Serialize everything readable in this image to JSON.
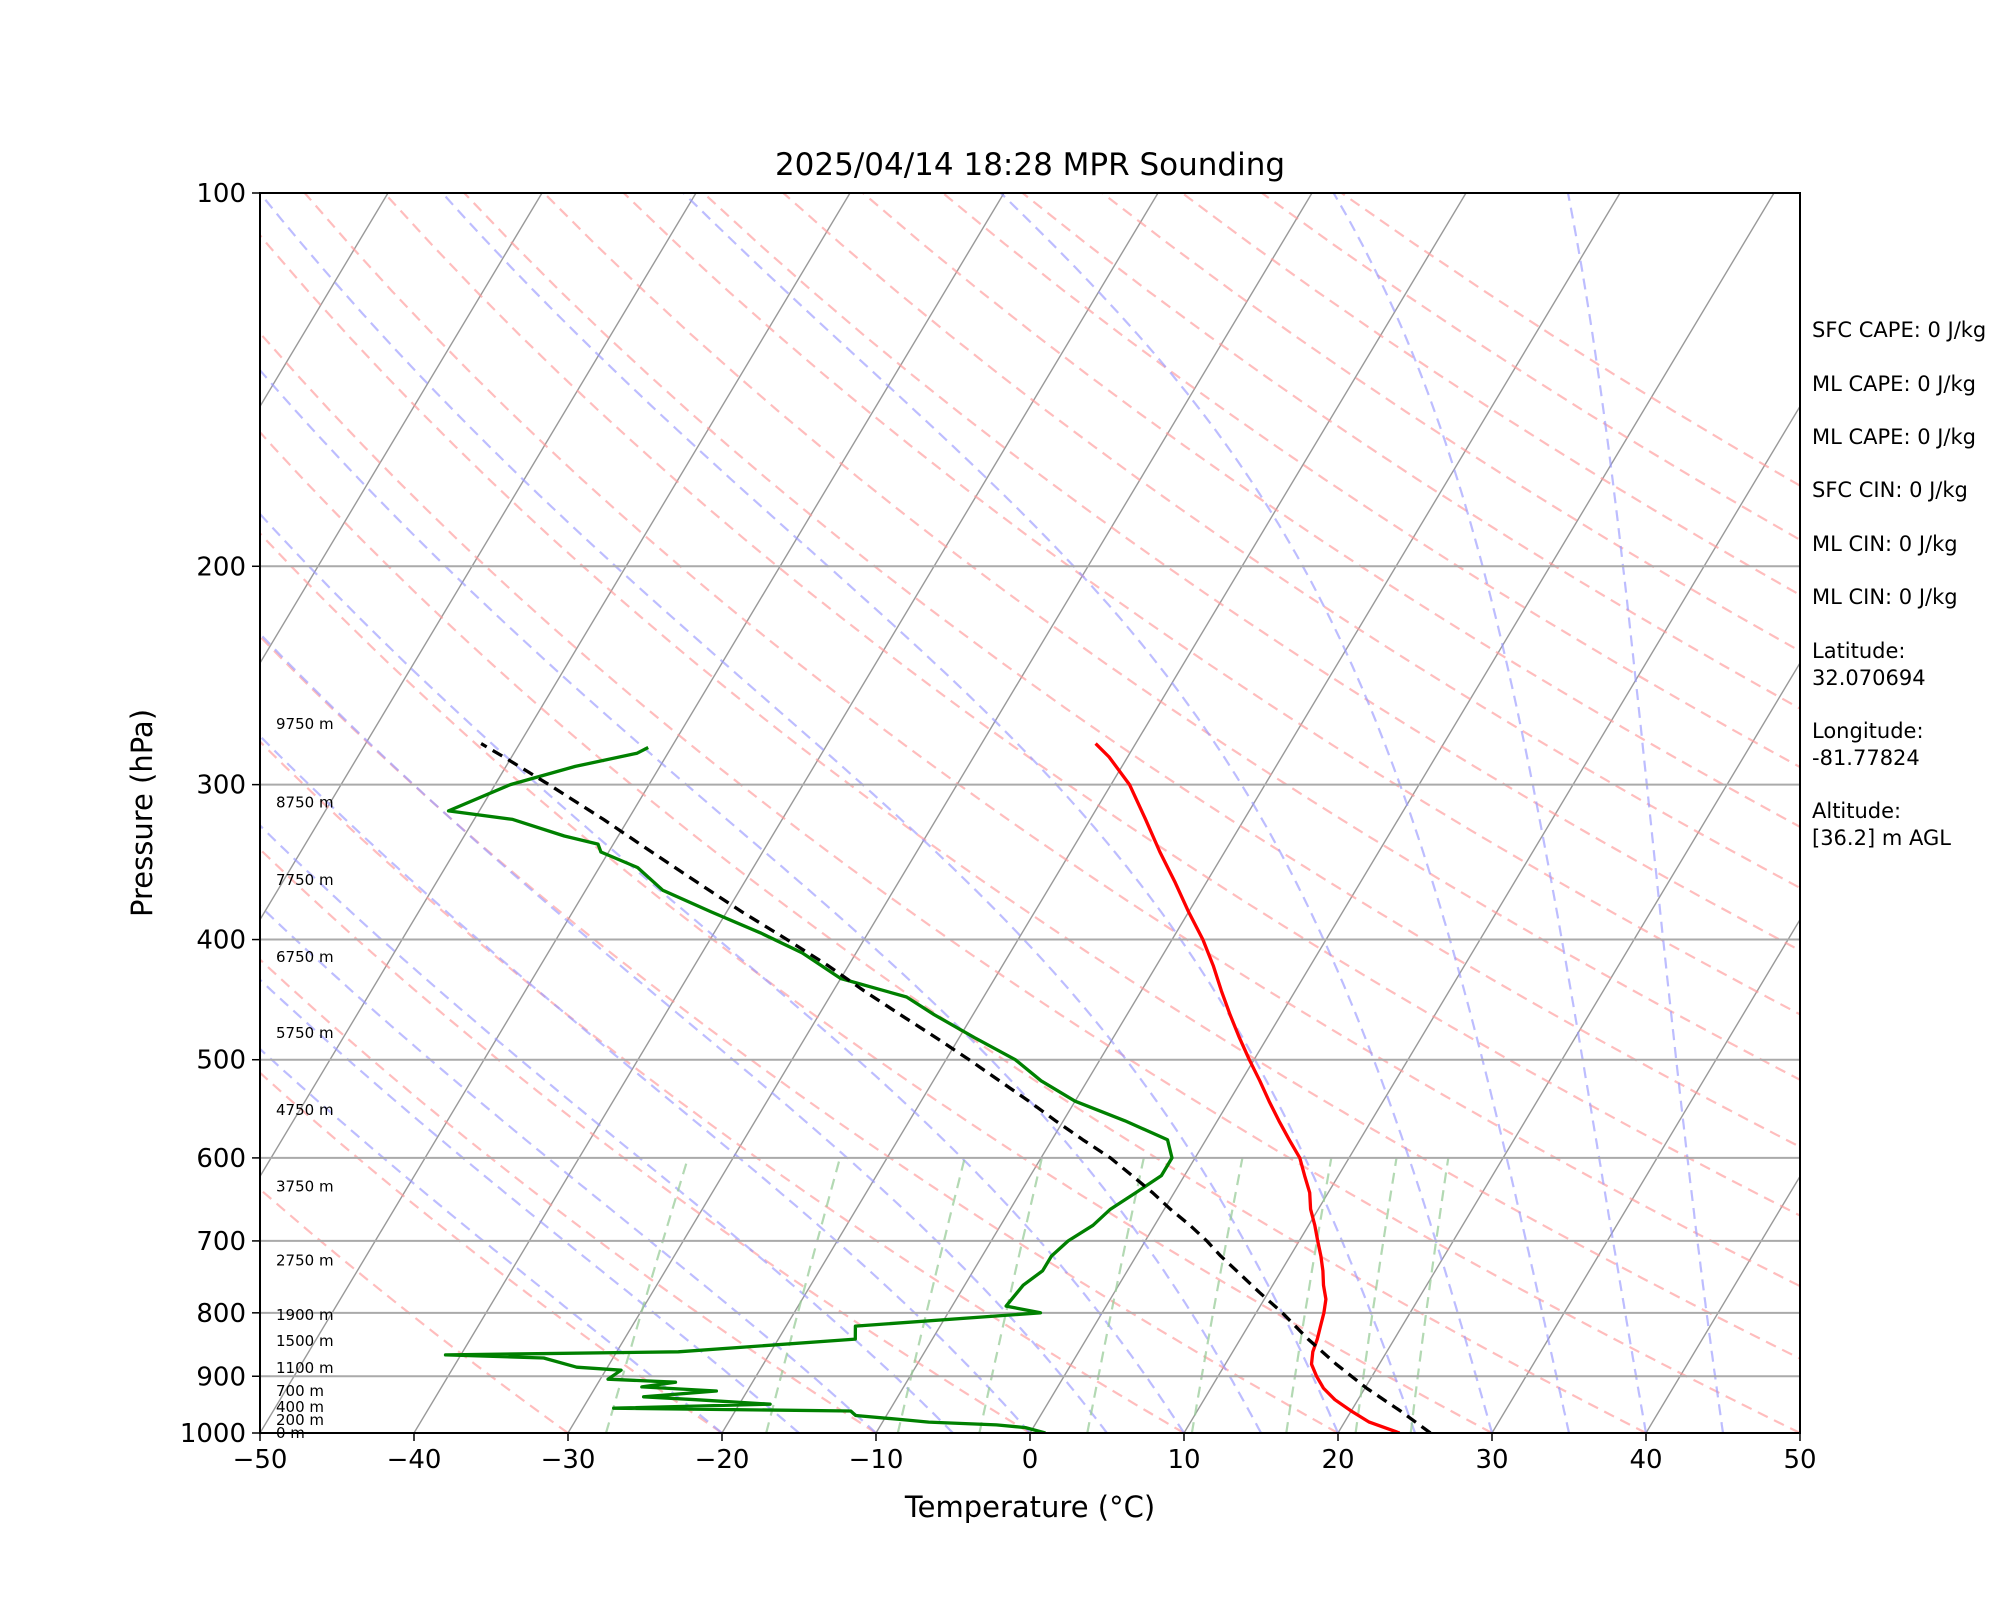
{
  "chart_data": {
    "type": "line",
    "title": "2025/04/14 18:28 MPR Sounding",
    "xlabel": "Temperature (°C)",
    "ylabel": "Pressure (hPa)",
    "xlim": [
      -50,
      50
    ],
    "ylim": [
      1000,
      100
    ],
    "y_scale": "log",
    "skew": "temperature lines skewed to the right with height",
    "grid": true,
    "x_ticks": [
      "−50",
      "−40",
      "−30",
      "−20",
      "−10",
      "0",
      "10",
      "20",
      "30",
      "40",
      "50"
    ],
    "y_ticks": [
      "100",
      "200",
      "300",
      "400",
      "500",
      "600",
      "700",
      "800",
      "900",
      "1000"
    ],
    "height_labels": [
      {
        "p": 1000,
        "text": "0 m"
      },
      {
        "p": 976,
        "text": "200 m"
      },
      {
        "p": 953,
        "text": "400 m"
      },
      {
        "p": 925,
        "text": "700 m"
      },
      {
        "p": 886,
        "text": "1100 m"
      },
      {
        "p": 843,
        "text": "1500 m"
      },
      {
        "p": 803,
        "text": "1900 m"
      },
      {
        "p": 726,
        "text": "2750 m"
      },
      {
        "p": 633,
        "text": "3750 m"
      },
      {
        "p": 549,
        "text": "4750 m"
      },
      {
        "p": 476,
        "text": "5750 m"
      },
      {
        "p": 413,
        "text": "6750 m"
      },
      {
        "p": 358,
        "text": "7750 m"
      },
      {
        "p": 310,
        "text": "8750 m"
      },
      {
        "p": 268,
        "text": "9750 m"
      }
    ],
    "series": [
      {
        "role": "temperature",
        "color": "#ff0000",
        "points": [
          [
            24,
            1000
          ],
          [
            21.6,
            980
          ],
          [
            20,
            960
          ],
          [
            18.5,
            940
          ],
          [
            17.3,
            920
          ],
          [
            16.4,
            900
          ],
          [
            15.6,
            880
          ],
          [
            15.2,
            860
          ],
          [
            15,
            840
          ],
          [
            14.7,
            820
          ],
          [
            14.4,
            800
          ],
          [
            14.0,
            780
          ],
          [
            13.3,
            760
          ],
          [
            12.7,
            740
          ],
          [
            12.0,
            720
          ],
          [
            11.2,
            700
          ],
          [
            10.4,
            680
          ],
          [
            9.5,
            660
          ],
          [
            8.8,
            640
          ],
          [
            7.8,
            620
          ],
          [
            6.8,
            600
          ],
          [
            5.4,
            580
          ],
          [
            4.0,
            560
          ],
          [
            2.6,
            540
          ],
          [
            1.2,
            520
          ],
          [
            -0.3,
            500
          ],
          [
            -1.8,
            480
          ],
          [
            -3.3,
            460
          ],
          [
            -4.8,
            440
          ],
          [
            -6.3,
            420
          ],
          [
            -8.0,
            400
          ],
          [
            -10,
            380
          ],
          [
            -12,
            360
          ],
          [
            -14.2,
            340
          ],
          [
            -16.4,
            320
          ],
          [
            -18.8,
            300
          ],
          [
            -21.2,
            285
          ],
          [
            -22.6,
            278
          ]
        ]
      },
      {
        "role": "dewpoint",
        "color": "#008000",
        "points": [
          [
            1,
            1000
          ],
          [
            -0.5,
            990
          ],
          [
            -2.5,
            985
          ],
          [
            -7,
            980
          ],
          [
            -9,
            975
          ],
          [
            -12,
            968
          ],
          [
            -12.5,
            960
          ],
          [
            -28,
            955
          ],
          [
            -18,
            948
          ],
          [
            -23,
            940
          ],
          [
            -26.5,
            935
          ],
          [
            -22,
            925
          ],
          [
            -27,
            918
          ],
          [
            -25,
            910
          ],
          [
            -29.5,
            905
          ],
          [
            -29,
            890
          ],
          [
            -32,
            885
          ],
          [
            -34.5,
            870
          ],
          [
            -41,
            865
          ],
          [
            -26,
            860
          ],
          [
            -15,
            840
          ],
          [
            -15.5,
            820
          ],
          [
            -4,
            800
          ],
          [
            -6.5,
            790
          ],
          [
            -6.2,
            760
          ],
          [
            -5.5,
            740
          ],
          [
            -5.5,
            720
          ],
          [
            -5,
            700
          ],
          [
            -4,
            680
          ],
          [
            -3.5,
            660
          ],
          [
            -2.5,
            640
          ],
          [
            -1.5,
            620
          ],
          [
            -1.5,
            600
          ],
          [
            -2.5,
            580
          ],
          [
            -6,
            560
          ],
          [
            -10,
            540
          ],
          [
            -13,
            520
          ],
          [
            -15.5,
            500
          ],
          [
            -19,
            480
          ],
          [
            -22.5,
            460
          ],
          [
            -25,
            445
          ],
          [
            -30,
            430
          ],
          [
            -33.5,
            410
          ],
          [
            -37,
            395
          ],
          [
            -41,
            380
          ],
          [
            -45,
            365
          ],
          [
            -47.5,
            350
          ],
          [
            -50.5,
            340
          ],
          [
            -51,
            335
          ],
          [
            -53.5,
            330
          ],
          [
            -57.5,
            320
          ],
          [
            -62,
            315
          ],
          [
            -59,
            300
          ],
          [
            -55.5,
            290
          ],
          [
            -52,
            283
          ],
          [
            -51.5,
            280
          ]
        ]
      },
      {
        "role": "parcel",
        "color": "#000000",
        "dashed": true,
        "points": [
          [
            26,
            1000
          ],
          [
            23.2,
            960
          ],
          [
            20.1,
            920
          ],
          [
            17.2,
            880
          ],
          [
            14.4,
            840
          ],
          [
            11.7,
            800
          ],
          [
            9.4,
            770
          ],
          [
            7.1,
            740
          ],
          [
            5.5,
            720
          ],
          [
            4.0,
            700
          ],
          [
            2.3,
            680
          ],
          [
            0.4,
            660
          ],
          [
            -1.4,
            640
          ],
          [
            -3.4,
            620
          ],
          [
            -5.5,
            600
          ],
          [
            -8,
            580
          ],
          [
            -10.5,
            560
          ],
          [
            -13,
            540
          ],
          [
            -15.7,
            520
          ],
          [
            -18.5,
            500
          ],
          [
            -21.5,
            480
          ],
          [
            -24.7,
            460
          ],
          [
            -28,
            440
          ],
          [
            -31.3,
            420
          ],
          [
            -35,
            400
          ],
          [
            -39,
            380
          ],
          [
            -43,
            360
          ],
          [
            -47.2,
            340
          ],
          [
            -51.6,
            320
          ],
          [
            -56.5,
            300
          ],
          [
            -60.5,
            285
          ],
          [
            -62.5,
            278
          ]
        ]
      }
    ],
    "background_lines": [
      {
        "kind": "isotherms",
        "color": "#999999",
        "style": "solid"
      },
      {
        "kind": "dry adiabats",
        "color": "#ff9999",
        "style": "dashed"
      },
      {
        "kind": "moist adiabats",
        "color": "#9999ff",
        "style": "dashed"
      },
      {
        "kind": "mixing ratio lines",
        "color": "#99cc99",
        "style": "dashed"
      }
    ],
    "annotations": [
      "SFC CAPE: 0 J/kg",
      "ML CAPE: 0 J/kg",
      "ML CAPE: 0 J/kg",
      "SFC CIN: 0 J/kg",
      "ML CIN: 0 J/kg",
      "ML CIN: 0 J/kg",
      "Latitude:",
      "32.070694",
      "Longitude:",
      "-81.77824",
      "Altitude:",
      "[36.2] m AGL"
    ]
  }
}
